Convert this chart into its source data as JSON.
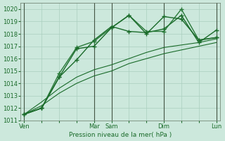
{
  "background_color": "#cce8dc",
  "grid_color": "#aacfbf",
  "ylabel_text": "Pression niveau de la mer( hPa )",
  "ylim": [
    1011,
    1020.5
  ],
  "yticks": [
    1011,
    1012,
    1013,
    1014,
    1015,
    1016,
    1017,
    1018,
    1019,
    1020
  ],
  "xlim": [
    -0.2,
    11.2
  ],
  "xtick_labels": [
    "Ven",
    "",
    "",
    "",
    "Mar",
    "Sam",
    "",
    "",
    "Dim",
    "",
    "",
    "Lun"
  ],
  "xtick_positions": [
    0,
    1,
    2,
    3,
    4,
    5,
    6,
    7,
    8,
    9,
    10,
    11
  ],
  "vline_positions": [
    0,
    4,
    5,
    8,
    11
  ],
  "series": [
    {
      "x": [
        0,
        1,
        2,
        3,
        4,
        5,
        6,
        7,
        8,
        9,
        10,
        11
      ],
      "y": [
        1011.5,
        1012.5,
        1013.6,
        1014.5,
        1015.1,
        1015.5,
        1016.0,
        1016.5,
        1016.9,
        1017.1,
        1017.3,
        1017.6
      ],
      "color": "#1a6b2a",
      "linewidth": 0.8,
      "marker": null,
      "linestyle": "-"
    },
    {
      "x": [
        0,
        1,
        2,
        3,
        4,
        5,
        6,
        7,
        8,
        9,
        10,
        11
      ],
      "y": [
        1011.5,
        1012.2,
        1013.2,
        1014.0,
        1014.6,
        1015.0,
        1015.6,
        1016.0,
        1016.4,
        1016.7,
        1017.0,
        1017.3
      ],
      "color": "#1a6b2a",
      "linewidth": 0.8,
      "marker": null,
      "linestyle": "-"
    },
    {
      "x": [
        0,
        1,
        2,
        3,
        4,
        5,
        6,
        7,
        8,
        9,
        10,
        11
      ],
      "y": [
        1011.5,
        1012.0,
        1014.5,
        1015.9,
        1017.5,
        1018.6,
        1018.2,
        1018.1,
        1018.4,
        1019.5,
        1017.3,
        1018.3
      ],
      "color": "#1a6b2a",
      "linewidth": 1.0,
      "marker": "+",
      "markersize": 4,
      "markeredgewidth": 1.0,
      "linestyle": "-"
    },
    {
      "x": [
        0,
        1,
        2,
        3,
        4,
        5,
        6,
        7,
        8,
        9,
        10,
        11
      ],
      "y": [
        1011.5,
        1012.0,
        1014.8,
        1016.9,
        1017.4,
        1018.5,
        1019.5,
        1018.2,
        1018.2,
        1020.0,
        1017.5,
        1017.7
      ],
      "color": "#2a7a3a",
      "linewidth": 1.0,
      "marker": "+",
      "markersize": 4,
      "markeredgewidth": 1.0,
      "linestyle": "-"
    },
    {
      "x": [
        0,
        1,
        2,
        3,
        4,
        5,
        6,
        7,
        8,
        9,
        10,
        11
      ],
      "y": [
        1011.5,
        1012.0,
        1014.5,
        1016.8,
        1017.0,
        1018.5,
        1019.5,
        1018.0,
        1019.4,
        1019.2,
        1017.5,
        1017.7
      ],
      "color": "#1a6b2a",
      "linewidth": 1.0,
      "marker": "+",
      "markersize": 4,
      "markeredgewidth": 1.0,
      "linestyle": "-"
    }
  ]
}
